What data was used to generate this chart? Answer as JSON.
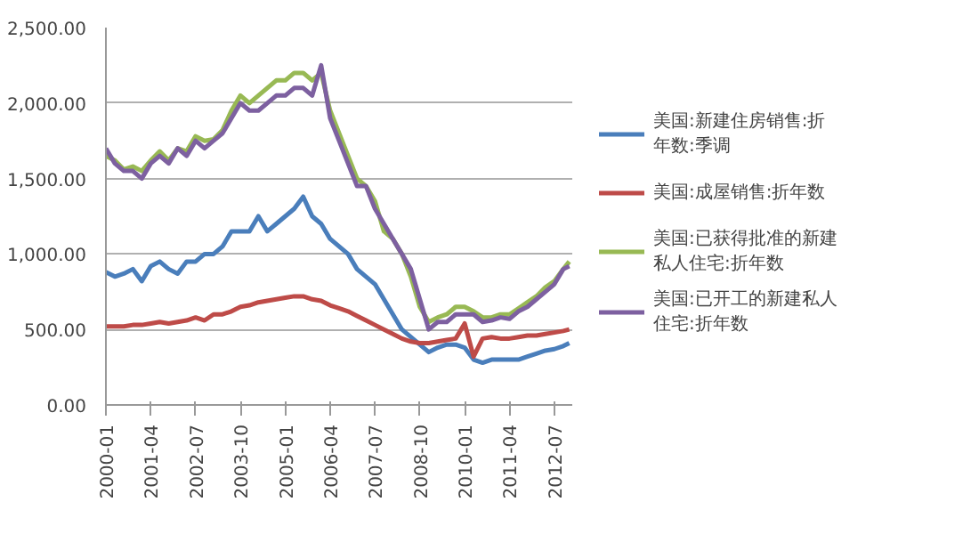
{
  "chart_data": {
    "type": "line",
    "x": [
      "2000-01",
      "2000-04",
      "2000-07",
      "2000-10",
      "2001-01",
      "2001-04",
      "2001-07",
      "2001-10",
      "2002-01",
      "2002-04",
      "2002-07",
      "2002-10",
      "2003-01",
      "2003-04",
      "2003-07",
      "2003-10",
      "2004-01",
      "2004-04",
      "2004-07",
      "2004-10",
      "2005-01",
      "2005-04",
      "2005-07",
      "2005-10",
      "2006-01",
      "2006-04",
      "2006-07",
      "2006-10",
      "2007-01",
      "2007-04",
      "2007-07",
      "2007-10",
      "2008-01",
      "2008-04",
      "2008-07",
      "2008-10",
      "2009-01",
      "2009-04",
      "2009-07",
      "2009-10",
      "2010-01",
      "2010-04",
      "2010-07",
      "2010-10",
      "2011-01",
      "2011-04",
      "2011-07",
      "2011-10",
      "2012-01",
      "2012-04",
      "2012-07",
      "2012-10",
      "2012-12"
    ],
    "series": [
      {
        "name": "美国:新建住房销售:折年数:季调",
        "color": "#4a7ebb",
        "values": [
          880,
          850,
          870,
          900,
          820,
          920,
          950,
          900,
          870,
          950,
          950,
          1000,
          1000,
          1050,
          1150,
          1150,
          1150,
          1250,
          1150,
          1200,
          1250,
          1300,
          1380,
          1250,
          1200,
          1100,
          1050,
          1000,
          900,
          850,
          800,
          700,
          600,
          500,
          450,
          400,
          350,
          380,
          400,
          400,
          380,
          300,
          280,
          300,
          300,
          300,
          300,
          320,
          340,
          360,
          370,
          390,
          410
        ]
      },
      {
        "name": "美国:成屋销售:折年数",
        "color": "#be4b48",
        "values": [
          520,
          520,
          520,
          530,
          530,
          540,
          550,
          540,
          550,
          560,
          580,
          560,
          600,
          600,
          620,
          650,
          660,
          680,
          690,
          700,
          710,
          720,
          720,
          700,
          690,
          660,
          640,
          620,
          590,
          560,
          530,
          500,
          470,
          440,
          420,
          410,
          410,
          420,
          430,
          440,
          540,
          320,
          440,
          450,
          440,
          440,
          450,
          460,
          460,
          470,
          480,
          490,
          500
        ]
      },
      {
        "name": "美国:已获得批准的新建私人住宅:折年数",
        "color": "#98b954",
        "values": [
          1650,
          1620,
          1560,
          1580,
          1550,
          1620,
          1680,
          1620,
          1700,
          1680,
          1780,
          1750,
          1760,
          1820,
          1950,
          2050,
          2000,
          2050,
          2100,
          2150,
          2150,
          2200,
          2200,
          2150,
          2200,
          1950,
          1800,
          1650,
          1500,
          1450,
          1350,
          1150,
          1100,
          1000,
          850,
          650,
          550,
          580,
          600,
          650,
          650,
          620,
          580,
          580,
          600,
          600,
          640,
          680,
          720,
          780,
          820,
          900,
          950
        ]
      },
      {
        "name": "美国:已开工的新建私人住宅:折年数",
        "color": "#7d60a0",
        "values": [
          1700,
          1600,
          1550,
          1550,
          1500,
          1600,
          1650,
          1600,
          1700,
          1650,
          1750,
          1700,
          1750,
          1800,
          1900,
          2000,
          1950,
          1950,
          2000,
          2050,
          2050,
          2100,
          2100,
          2050,
          2250,
          1900,
          1750,
          1600,
          1450,
          1450,
          1300,
          1200,
          1100,
          1000,
          900,
          700,
          500,
          550,
          550,
          600,
          600,
          600,
          550,
          560,
          580,
          570,
          620,
          650,
          700,
          750,
          800,
          900,
          920
        ]
      }
    ],
    "xlim": [
      "2000-01",
      "2013-01"
    ],
    "xticks": [
      "2000-01",
      "2001-04",
      "2002-07",
      "2003-10",
      "2005-01",
      "2006-04",
      "2007-07",
      "2008-10",
      "2010-01",
      "2011-04",
      "2012-07"
    ],
    "ylim": [
      0,
      2500
    ],
    "yticks": [
      {
        "value": 0,
        "label": "0.00"
      },
      {
        "value": 500,
        "label": "500.00"
      },
      {
        "value": 1000,
        "label": "1,000.00"
      },
      {
        "value": 1500,
        "label": "1,500.00"
      },
      {
        "value": 2000,
        "label": "2,000.00"
      },
      {
        "value": 2500,
        "label": "2,500.00"
      }
    ],
    "grid": "y",
    "legend": "right",
    "marker": "none",
    "line_style": "solid"
  }
}
